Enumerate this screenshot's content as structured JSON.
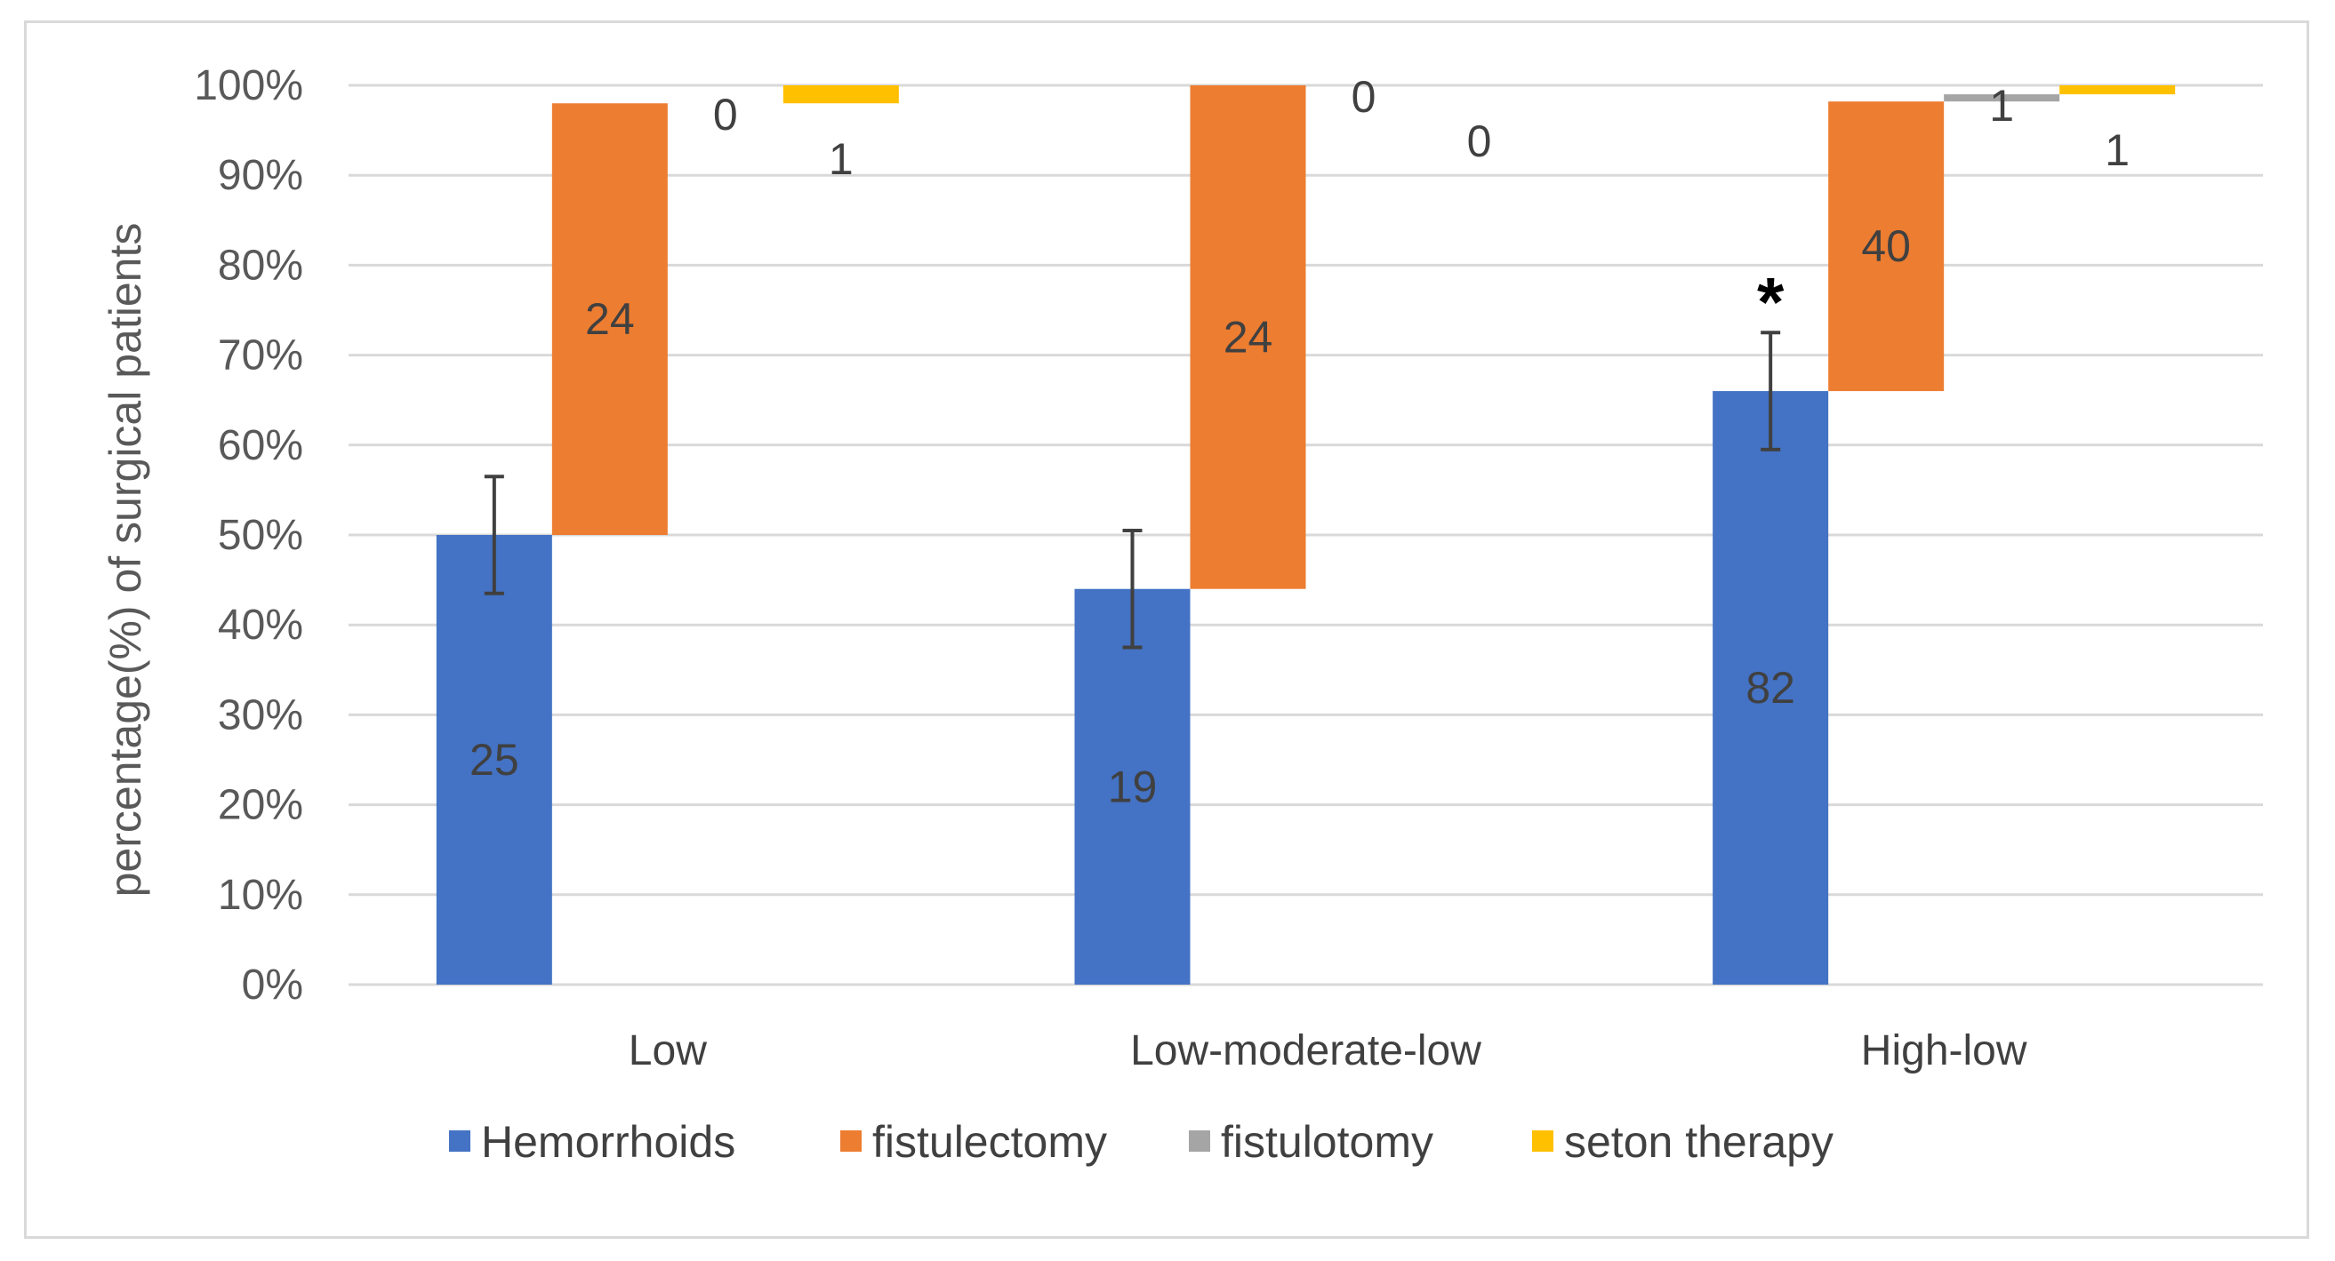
{
  "chart_data": {
    "type": "bar",
    "title": "",
    "xlabel": "",
    "ylabel": "percentage(%) of surgical patients",
    "ylim": [
      0,
      100
    ],
    "y_ticks": [
      "0%",
      "10%",
      "20%",
      "30%",
      "40%",
      "50%",
      "60%",
      "70%",
      "80%",
      "90%",
      "100%"
    ],
    "grid": true,
    "legend_position": "bottom",
    "categories": [
      "Low",
      "Low-moderate-low",
      "High-low"
    ],
    "series": [
      {
        "name": "Hemorrhoids",
        "color": "#4472c4",
        "start": [
          0,
          0,
          0
        ],
        "end": [
          50,
          44,
          66
        ],
        "labels": [
          "25",
          "19",
          "82"
        ],
        "error": [
          6.5,
          6.5,
          6.5
        ]
      },
      {
        "name": "fistulectomy",
        "color": "#ed7d31",
        "start": [
          50,
          44,
          66
        ],
        "end": [
          98,
          100,
          98.2
        ],
        "labels": [
          "24",
          "24",
          "40"
        ]
      },
      {
        "name": "fistulotomy",
        "color": "#a5a5a5",
        "start": [
          98,
          100,
          98.2
        ],
        "end": [
          98,
          100,
          99
        ],
        "labels": [
          "0",
          "0",
          "1"
        ]
      },
      {
        "name": "seton therapy",
        "color": "#ffc000",
        "start": [
          98,
          100,
          99
        ],
        "end": [
          100,
          100,
          100
        ],
        "labels": [
          "1",
          "0",
          "1"
        ]
      }
    ],
    "annotations": [
      {
        "text": "*",
        "category": "High-low",
        "series": "Hemorrhoids"
      }
    ]
  }
}
